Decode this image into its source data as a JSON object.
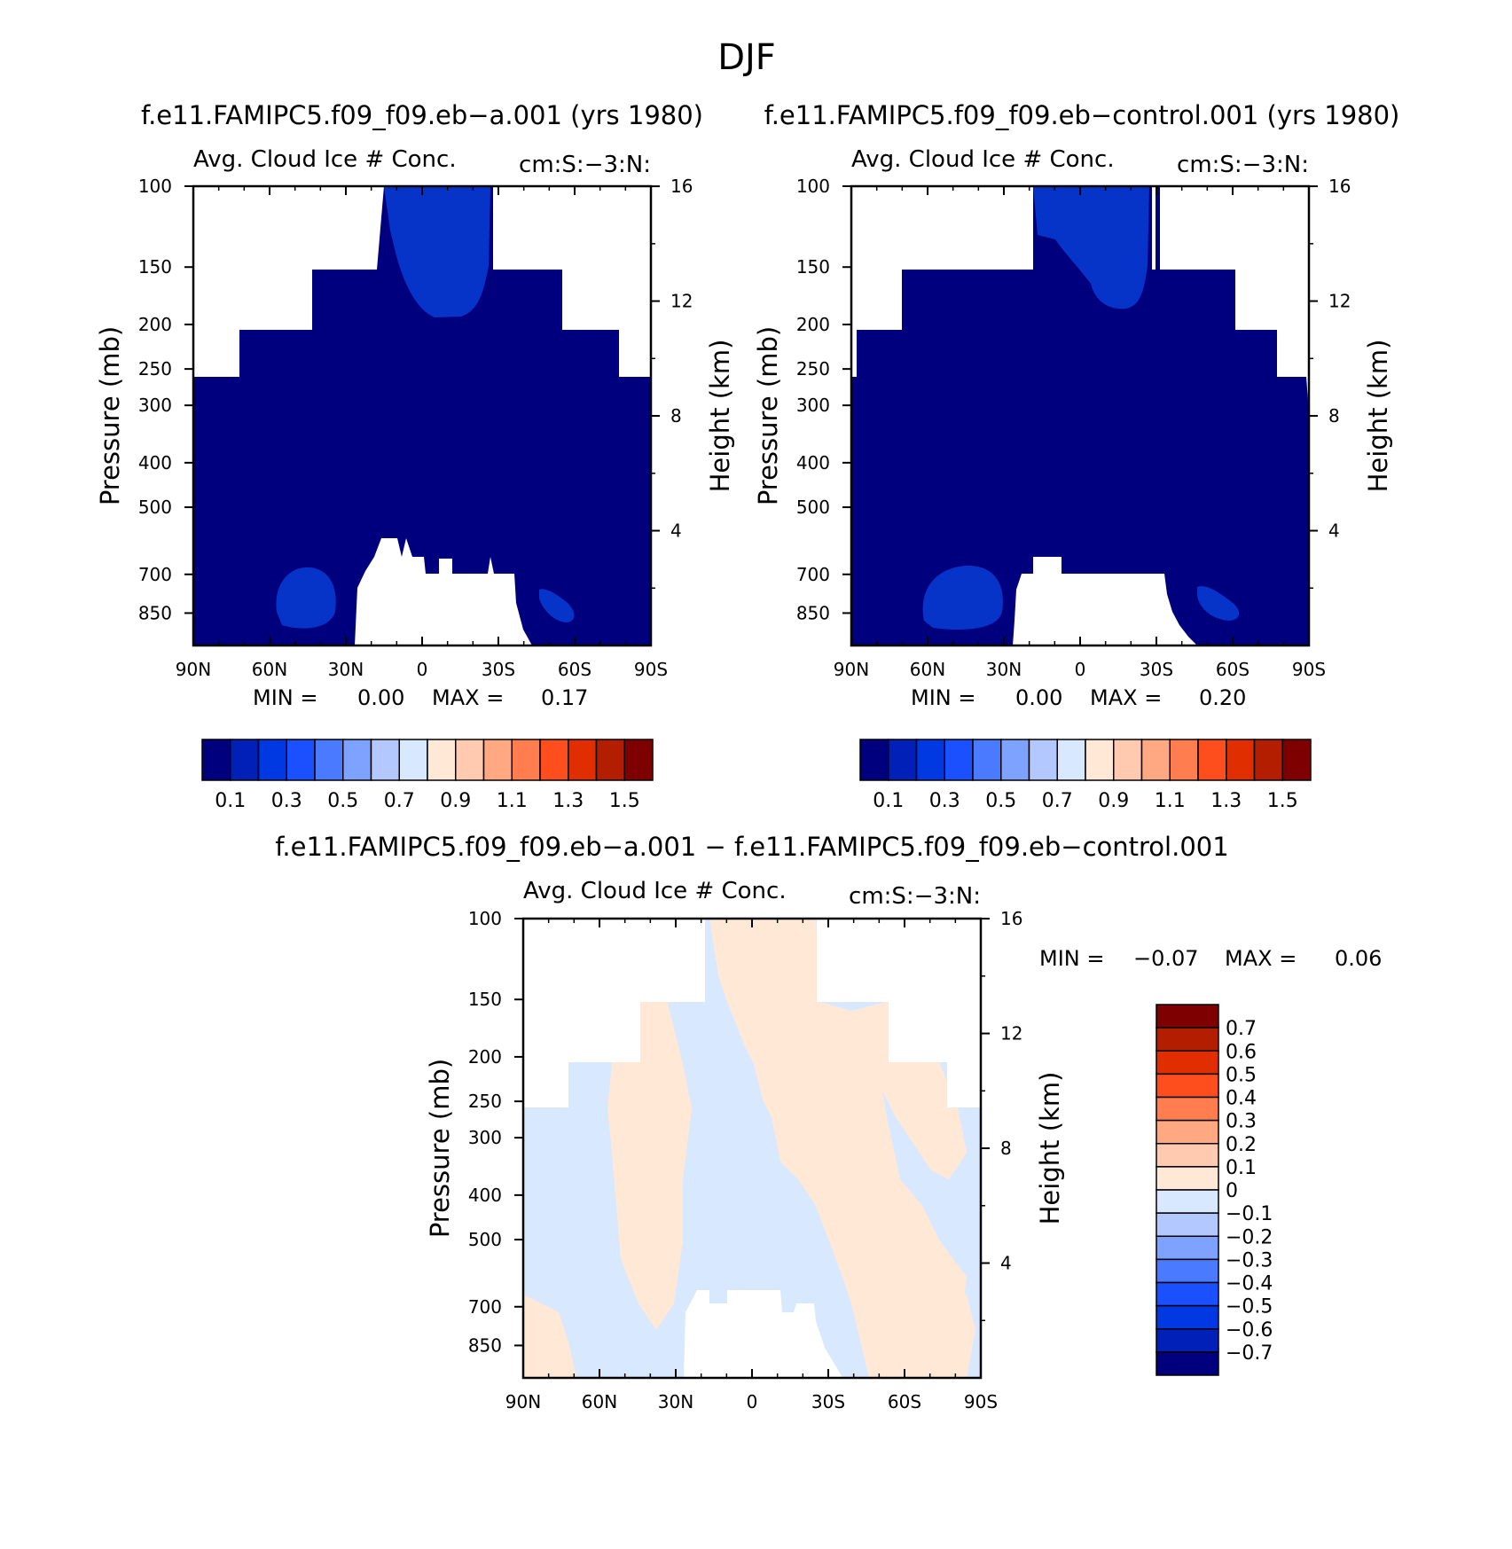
{
  "figure_title": "DJF",
  "colors": {
    "background": "#ffffff",
    "mask": "#ffffff",
    "frame": "#000000",
    "abs_palette": [
      "#00007f",
      "#0020b8",
      "#0038e2",
      "#1a50ff",
      "#4a7aff",
      "#7ea2ff",
      "#b2c8ff",
      "#d8e8ff",
      "#ffe9d6",
      "#ffcab0",
      "#ffa882",
      "#ff7d4e",
      "#ff4e1e",
      "#e02e00",
      "#b31e00",
      "#7f0000"
    ],
    "diff_palette": [
      "#00007f",
      "#0020b8",
      "#0038e2",
      "#1a50ff",
      "#4a7aff",
      "#7ea2ff",
      "#b2c8ff",
      "#d8e8ff",
      "#ffe9d6",
      "#ffcab0",
      "#ffa882",
      "#ff7d4e",
      "#ff4e1e",
      "#e02e00",
      "#b31e00",
      "#7f0000"
    ]
  },
  "chart_data": [
    {
      "type": "heatmap",
      "id": "panel_a",
      "title": "f.e11.FAMIPC5.f09_f09.eb−a.001 (yrs 1980)",
      "subtitle_left": "Avg. Cloud Ice # Conc.",
      "subtitle_right": "cm:S:−3:N:",
      "ylabel": "Pressure (mb)",
      "ylabel_right": "Height (km)",
      "x_ticks": [
        "90N",
        "60N",
        "30N",
        "0",
        "30S",
        "60S",
        "90S"
      ],
      "x_tick_lat": [
        90,
        60,
        30,
        0,
        -30,
        -60,
        -90
      ],
      "y_ticks": [
        "100",
        "150",
        "200",
        "250",
        "300",
        "400",
        "500",
        "700",
        "850"
      ],
      "y_tick_p": [
        100,
        150,
        200,
        250,
        300,
        400,
        500,
        700,
        850
      ],
      "y2_ticks": [
        "16",
        "12",
        "8",
        "4"
      ],
      "y2_tick_km": [
        16,
        12,
        8,
        4
      ],
      "ylim": [
        100,
        1000
      ],
      "xlim": [
        90,
        -90
      ],
      "min_label": "MIN =",
      "min_value": "0.00",
      "max_label": "MAX =",
      "max_value": "0.17",
      "stats": {
        "min": 0.0,
        "max": 0.17
      },
      "colorbar_labels": [
        "0.1",
        "0.3",
        "0.5",
        "0.7",
        "0.9",
        "1.1",
        "1.3",
        "1.5"
      ],
      "colorbar_levels": [
        0.1,
        0.2,
        0.3,
        0.4,
        0.5,
        0.6,
        0.7,
        0.8,
        0.9,
        1.0,
        1.1,
        1.2,
        1.3,
        1.4,
        1.5
      ]
    },
    {
      "type": "heatmap",
      "id": "panel_b",
      "title": "f.e11.FAMIPC5.f09_f09.eb−control.001 (yrs 1980)",
      "subtitle_left": "Avg. Cloud Ice # Conc.",
      "subtitle_right": "cm:S:−3:N:",
      "ylabel": "Pressure (mb)",
      "ylabel_right": "Height (km)",
      "x_ticks": [
        "90N",
        "60N",
        "30N",
        "0",
        "30S",
        "60S",
        "90S"
      ],
      "x_tick_lat": [
        90,
        60,
        30,
        0,
        -30,
        -60,
        -90
      ],
      "y_ticks": [
        "100",
        "150",
        "200",
        "250",
        "300",
        "400",
        "500",
        "700",
        "850"
      ],
      "y_tick_p": [
        100,
        150,
        200,
        250,
        300,
        400,
        500,
        700,
        850
      ],
      "y2_ticks": [
        "16",
        "12",
        "8",
        "4"
      ],
      "y2_tick_km": [
        16,
        12,
        8,
        4
      ],
      "ylim": [
        100,
        1000
      ],
      "xlim": [
        90,
        -90
      ],
      "min_label": "MIN =",
      "min_value": "0.00",
      "max_label": "MAX =",
      "max_value": "0.20",
      "stats": {
        "min": 0.0,
        "max": 0.2
      },
      "colorbar_labels": [
        "0.1",
        "0.3",
        "0.5",
        "0.7",
        "0.9",
        "1.1",
        "1.3",
        "1.5"
      ],
      "colorbar_levels": [
        0.1,
        0.2,
        0.3,
        0.4,
        0.5,
        0.6,
        0.7,
        0.8,
        0.9,
        1.0,
        1.1,
        1.2,
        1.3,
        1.4,
        1.5
      ]
    },
    {
      "type": "heatmap",
      "id": "panel_diff",
      "title": "f.e11.FAMIPC5.f09_f09.eb−a.001 − f.e11.FAMIPC5.f09_f09.eb−control.001",
      "subtitle_left": "Avg. Cloud Ice # Conc.",
      "subtitle_right": "cm:S:−3:N:",
      "ylabel": "Pressure (mb)",
      "ylabel_right": "Height (km)",
      "x_ticks": [
        "90N",
        "60N",
        "30N",
        "0",
        "30S",
        "60S",
        "90S"
      ],
      "x_tick_lat": [
        90,
        60,
        30,
        0,
        -30,
        -60,
        -90
      ],
      "y_ticks": [
        "100",
        "150",
        "200",
        "250",
        "300",
        "400",
        "500",
        "700",
        "850"
      ],
      "y_tick_p": [
        100,
        150,
        200,
        250,
        300,
        400,
        500,
        700,
        850
      ],
      "y2_ticks": [
        "16",
        "12",
        "8",
        "4"
      ],
      "y2_tick_km": [
        16,
        12,
        8,
        4
      ],
      "ylim": [
        100,
        1000
      ],
      "xlim": [
        90,
        -90
      ],
      "min_label": "MIN =",
      "min_value": "−0.07",
      "max_label": "MAX =",
      "max_value": "0.06",
      "stats": {
        "min": -0.07,
        "max": 0.06
      },
      "colorbar_labels": [
        "0.7",
        "0.6",
        "0.5",
        "0.4",
        "0.3",
        "0.2",
        "0.1",
        "0",
        "−0.1",
        "−0.2",
        "−0.3",
        "−0.4",
        "−0.5",
        "−0.6",
        "−0.7"
      ],
      "colorbar_levels": [
        0.7,
        0.6,
        0.5,
        0.4,
        0.3,
        0.2,
        0.1,
        0,
        -0.1,
        -0.2,
        -0.3,
        -0.4,
        -0.5,
        -0.6,
        -0.7
      ]
    }
  ]
}
